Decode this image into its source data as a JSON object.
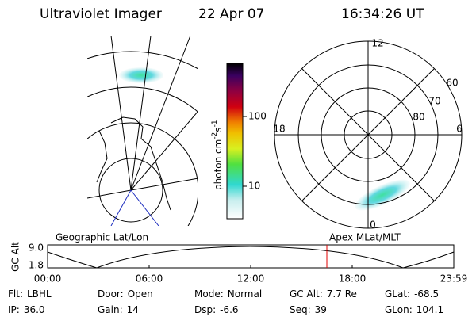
{
  "header": {
    "instrument": "Ultraviolet Imager",
    "date": "22 Apr 07",
    "time": "16:34:26 UT"
  },
  "colorbar": {
    "label": [
      "photon cm",
      "-2",
      "s",
      "-1"
    ],
    "ticks": [
      "100",
      "10"
    ]
  },
  "polar": {
    "mlt_labels": [
      "12",
      "18",
      "6",
      "0"
    ],
    "mlat_labels": [
      "60",
      "70",
      "80"
    ]
  },
  "altitude_plot": {
    "left_title": "Geographic Lat/Lon",
    "right_title": "Apex MLat/MLT",
    "y_label": "GC Alt",
    "y_ticks": [
      "9.0",
      "1.8"
    ],
    "x_ticks": [
      "00:00",
      "06:00",
      "12:00",
      "18:00",
      "23:59"
    ]
  },
  "info": [
    [
      {
        "label": "Flt:",
        "value": "LBHL"
      },
      {
        "label": "Door:",
        "value": "Open"
      },
      {
        "label": "Mode:",
        "value": "Normal"
      },
      {
        "label": "GC Alt:",
        "value": "7.7 Re"
      },
      {
        "label": "GLat:",
        "value": "-68.5"
      }
    ],
    [
      {
        "label": "IP:",
        "value": "36.0"
      },
      {
        "label": "Gain:",
        "value": "14"
      },
      {
        "label": "Dsp:",
        "value": "-6.6"
      },
      {
        "label": "Seq:",
        "value": "39"
      },
      {
        "label": "GLon:",
        "value": "104.1"
      }
    ]
  ]
}
